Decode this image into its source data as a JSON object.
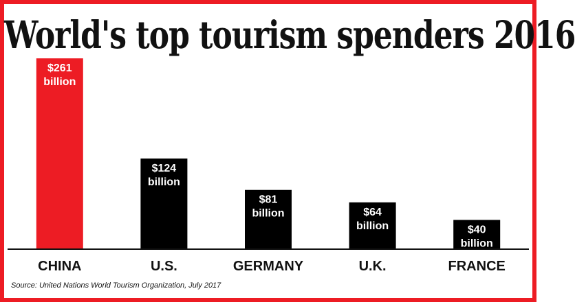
{
  "chart_data": {
    "type": "bar",
    "title": "World's top tourism spenders 2016",
    "categories": [
      "CHINA",
      "U.S.",
      "GERMANY",
      "U.K.",
      "FRANCE"
    ],
    "values": [
      261,
      124,
      81,
      64,
      40
    ],
    "value_labels": [
      [
        "$261",
        "billion"
      ],
      [
        "$124",
        "billion"
      ],
      [
        "$81",
        "billion"
      ],
      [
        "$64",
        "billion"
      ],
      [
        "$40",
        "billion"
      ]
    ],
    "colors": [
      "#ed1c24",
      "#000000",
      "#000000",
      "#000000",
      "#000000"
    ],
    "xlabel": "",
    "ylabel": "",
    "ylim": [
      0,
      261
    ],
    "grid": false,
    "legend": "none",
    "source": "Source: United Nations World Tourism Organization, July 2017"
  },
  "colors": {
    "border": "#ed1c24",
    "background": "#ffffff",
    "text": "#111111",
    "label_on_bar": "#ffffff"
  }
}
